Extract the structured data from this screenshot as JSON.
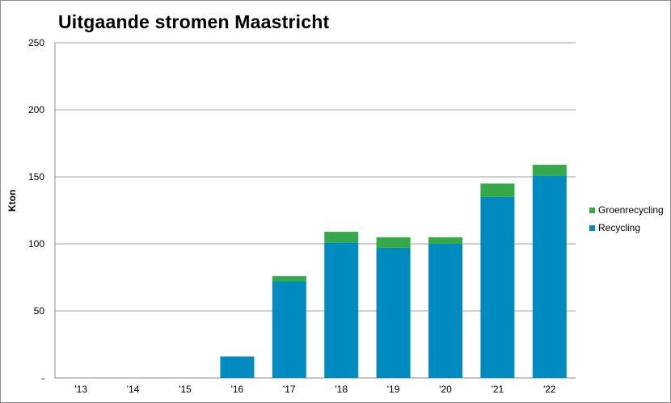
{
  "chart_data": {
    "type": "bar",
    "stacked": true,
    "title": "Uitgaande stromen Maastricht",
    "xlabel": "",
    "ylabel": "Kton",
    "categories": [
      "'13",
      "'14",
      "'15",
      "'16",
      "'17",
      "'18",
      "'19",
      "'20",
      "'21",
      "'22"
    ],
    "series": [
      {
        "name": "Recycling",
        "color": "#008bc0",
        "values": [
          0,
          0,
          0,
          16,
          72,
          101,
          97,
          100,
          135,
          151
        ]
      },
      {
        "name": "Groenrecycling",
        "color": "#35a84a",
        "values": [
          0,
          0,
          0,
          0,
          4,
          8,
          8,
          5,
          10,
          8
        ]
      }
    ],
    "ylim": [
      0,
      250
    ],
    "yticks": [
      {
        "value": 0,
        "label": "-"
      },
      {
        "value": 50,
        "label": "50"
      },
      {
        "value": 100,
        "label": "100"
      },
      {
        "value": 150,
        "label": "150"
      },
      {
        "value": 200,
        "label": "200"
      },
      {
        "value": 250,
        "label": "250"
      }
    ],
    "grid": true,
    "legend_position": "right",
    "legend": [
      "Groenrecycling",
      "Recycling"
    ]
  }
}
